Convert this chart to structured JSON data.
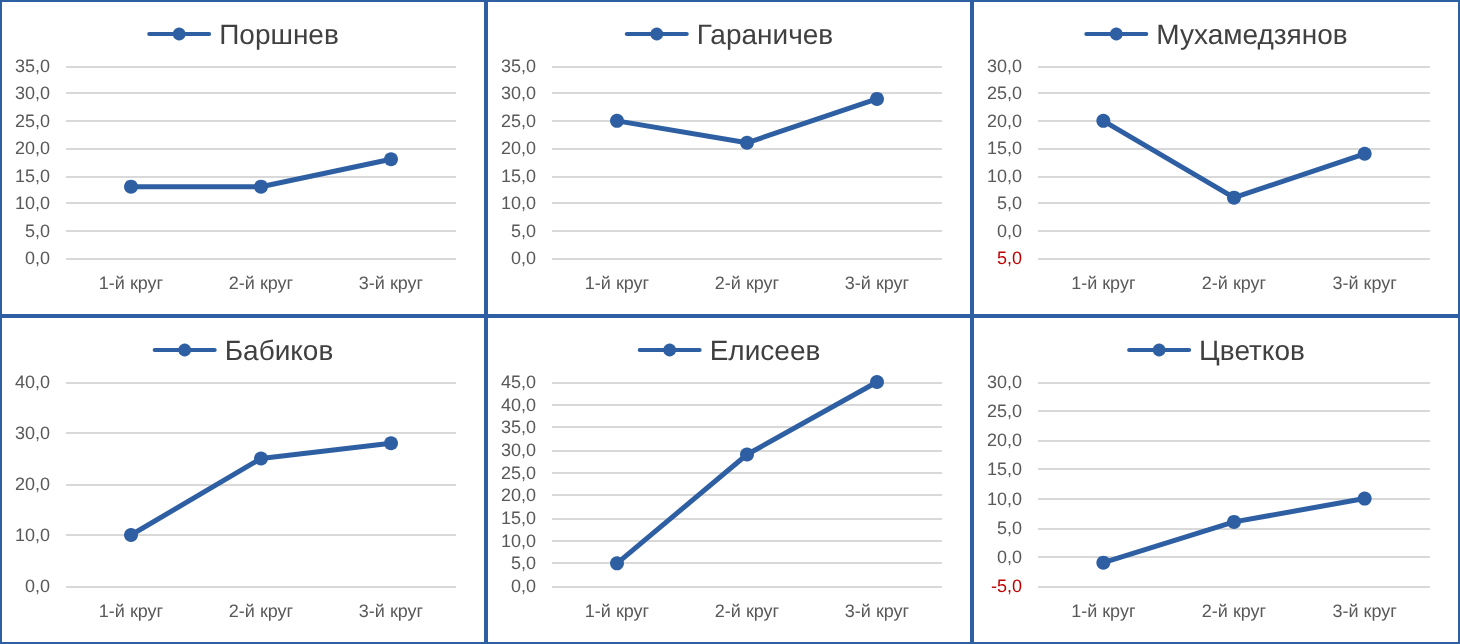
{
  "chart_data": [
    {
      "type": "line",
      "categories": [
        "1-й круг",
        "2-й круг",
        "3-й круг"
      ],
      "series": [
        {
          "name": "Поршнев",
          "color": "#2e5fa3",
          "values": [
            13,
            13,
            18
          ]
        }
      ],
      "ylim": [
        0,
        35
      ],
      "yticks": [
        {
          "value": 0,
          "label": "0,0"
        },
        {
          "value": 5,
          "label": "5,0"
        },
        {
          "value": 10,
          "label": "10,0"
        },
        {
          "value": 15,
          "label": "15,0"
        },
        {
          "value": 20,
          "label": "20,0"
        },
        {
          "value": 25,
          "label": "25,0"
        },
        {
          "value": 30,
          "label": "30,0"
        },
        {
          "value": 35,
          "label": "35,0"
        }
      ],
      "grid": "y",
      "legend": "top",
      "marker": "circle",
      "line_style": "solid"
    },
    {
      "type": "line",
      "categories": [
        "1-й круг",
        "2-й круг",
        "3-й круг"
      ],
      "series": [
        {
          "name": "Гараничев",
          "color": "#2e5fa3",
          "values": [
            25,
            21,
            29
          ]
        }
      ],
      "ylim": [
        0,
        35
      ],
      "yticks": [
        {
          "value": 0,
          "label": "0,0"
        },
        {
          "value": 5,
          "label": "5,0"
        },
        {
          "value": 10,
          "label": "10,0"
        },
        {
          "value": 15,
          "label": "15,0"
        },
        {
          "value": 20,
          "label": "20,0"
        },
        {
          "value": 25,
          "label": "25,0"
        },
        {
          "value": 30,
          "label": "30,0"
        },
        {
          "value": 35,
          "label": "35,0"
        }
      ],
      "grid": "y",
      "legend": "top",
      "marker": "circle",
      "line_style": "solid"
    },
    {
      "type": "line",
      "categories": [
        "1-й круг",
        "2-й круг",
        "3-й круг"
      ],
      "series": [
        {
          "name": "Мухамедзянов",
          "color": "#2e5fa3",
          "values": [
            20,
            6,
            14
          ]
        }
      ],
      "ylim": [
        -5,
        30
      ],
      "yticks": [
        {
          "value": -5,
          "label": "5,0"
        },
        {
          "value": 0,
          "label": "0,0"
        },
        {
          "value": 5,
          "label": "5,0"
        },
        {
          "value": 10,
          "label": "10,0"
        },
        {
          "value": 15,
          "label": "15,0"
        },
        {
          "value": 20,
          "label": "20,0"
        },
        {
          "value": 25,
          "label": "25,0"
        },
        {
          "value": 30,
          "label": "30,0"
        }
      ],
      "grid": "y",
      "legend": "top",
      "marker": "circle",
      "line_style": "solid"
    },
    {
      "type": "line",
      "categories": [
        "1-й круг",
        "2-й круг",
        "3-й круг"
      ],
      "series": [
        {
          "name": "Бабиков",
          "color": "#2e5fa3",
          "values": [
            10,
            25,
            28
          ]
        }
      ],
      "ylim": [
        0,
        40
      ],
      "yticks": [
        {
          "value": 0,
          "label": "0,0"
        },
        {
          "value": 10,
          "label": "10,0"
        },
        {
          "value": 20,
          "label": "20,0"
        },
        {
          "value": 30,
          "label": "30,0"
        },
        {
          "value": 40,
          "label": "40,0"
        }
      ],
      "grid": "y",
      "legend": "top",
      "marker": "circle",
      "line_style": "solid"
    },
    {
      "type": "line",
      "categories": [
        "1-й круг",
        "2-й круг",
        "3-й круг"
      ],
      "series": [
        {
          "name": "Елисеев",
          "color": "#2e5fa3",
          "values": [
            5,
            29,
            45
          ]
        }
      ],
      "ylim": [
        0,
        45
      ],
      "yticks": [
        {
          "value": 0,
          "label": "0,0"
        },
        {
          "value": 5,
          "label": "5,0"
        },
        {
          "value": 10,
          "label": "10,0"
        },
        {
          "value": 15,
          "label": "15,0"
        },
        {
          "value": 20,
          "label": "20,0"
        },
        {
          "value": 25,
          "label": "25,0"
        },
        {
          "value": 30,
          "label": "30,0"
        },
        {
          "value": 35,
          "label": "35,0"
        },
        {
          "value": 40,
          "label": "40,0"
        },
        {
          "value": 45,
          "label": "45,0"
        }
      ],
      "grid": "y",
      "legend": "top",
      "marker": "circle",
      "line_style": "solid"
    },
    {
      "type": "line",
      "categories": [
        "1-й круг",
        "2-й круг",
        "3-й круг"
      ],
      "series": [
        {
          "name": "Цветков",
          "color": "#2e5fa3",
          "values": [
            -1,
            6,
            10
          ]
        }
      ],
      "ylim": [
        -5,
        30
      ],
      "yticks": [
        {
          "value": -5,
          "label": "-5,0"
        },
        {
          "value": 0,
          "label": "0,0"
        },
        {
          "value": 5,
          "label": "5,0"
        },
        {
          "value": 10,
          "label": "10,0"
        },
        {
          "value": 15,
          "label": "15,0"
        },
        {
          "value": 20,
          "label": "20,0"
        },
        {
          "value": 25,
          "label": "25,0"
        },
        {
          "value": 30,
          "label": "30,0"
        }
      ],
      "grid": "y",
      "legend": "top",
      "marker": "circle",
      "line_style": "solid"
    }
  ]
}
